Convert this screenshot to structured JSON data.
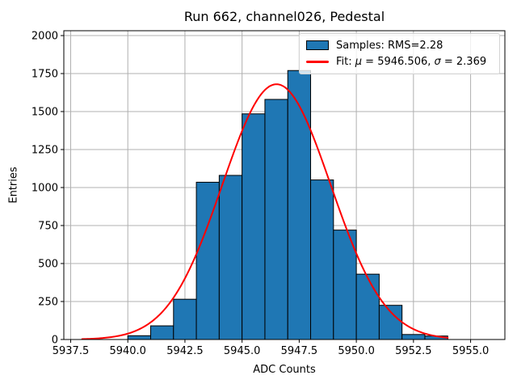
{
  "figure": {
    "title": "Run 662, channel026, Pedestal",
    "xlabel": "ADC Counts",
    "ylabel": "Entries"
  },
  "legend": {
    "samples_label": "Samples: RMS=2.28",
    "fit_label": "Fit: μ = 5946.506, σ = 2.369"
  },
  "chart_data": {
    "type": "bar",
    "subtype": "histogram_with_gaussian_fit",
    "title": "Run 662, channel026, Pedestal",
    "xlabel": "ADC Counts",
    "ylabel": "Entries",
    "xlim": [
      5937.2,
      5956.5
    ],
    "ylim": [
      0,
      2032
    ],
    "xticks": [
      5937.5,
      5940.0,
      5942.5,
      5945.0,
      5947.5,
      5950.0,
      5952.5,
      5955.0
    ],
    "xtick_labels": [
      "5937.5",
      "5940.0",
      "5942.5",
      "5945.0",
      "5947.5",
      "5950.0",
      "5952.5",
      "5955.0"
    ],
    "yticks": [
      0,
      250,
      500,
      750,
      1000,
      1250,
      1500,
      1750,
      2000
    ],
    "ytick_labels": [
      "0",
      "250",
      "500",
      "750",
      "1000",
      "1250",
      "1500",
      "1750",
      "2000"
    ],
    "grid": true,
    "legend_position": "upper right",
    "bin_width": 1,
    "bin_left_edges": [
      5940,
      5941,
      5942,
      5943,
      5944,
      5945,
      5946,
      5947,
      5948,
      5949,
      5950,
      5951,
      5952,
      5953
    ],
    "counts": [
      25,
      90,
      265,
      1035,
      1080,
      1485,
      1580,
      1770,
      1050,
      720,
      430,
      225,
      33,
      23
    ],
    "series": [
      {
        "name": "Samples: RMS=2.28",
        "type": "histogram",
        "rms": 2.28
      },
      {
        "name": "Fit: μ = 5946.506, σ = 2.369",
        "type": "gaussian_fit",
        "mu": 5946.506,
        "sigma": 2.369,
        "amplitude": 1680,
        "x_range": [
          5938,
          5954
        ]
      }
    ],
    "colors": {
      "bar_fill": "#1f77b4",
      "bar_edge": "#000000",
      "fit_line": "#ff0000",
      "grid": "#b0b0b0",
      "spine": "#000000",
      "text": "#000000"
    }
  }
}
